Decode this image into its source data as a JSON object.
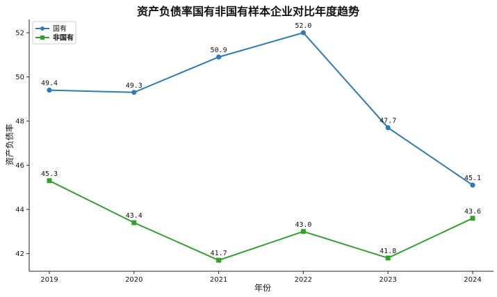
{
  "chart_data": {
    "type": "line",
    "title": "资产负债率国有非国有样本企业对比年度趋势",
    "xlabel": "年份",
    "ylabel": "资产负债率",
    "categories": [
      "2019",
      "2020",
      "2021",
      "2022",
      "2023",
      "2024"
    ],
    "ylim": [
      41.2,
      52.6
    ],
    "yticks": [
      42,
      44,
      46,
      48,
      50,
      52
    ],
    "grid": false,
    "legend_position": "top-left",
    "series": [
      {
        "name": "国有",
        "values": [
          49.4,
          49.3,
          50.9,
          52.0,
          47.7,
          45.1
        ],
        "labels": [
          "49.4",
          "49.3",
          "50.9",
          "52.0",
          "47.7",
          "45.1"
        ],
        "color": "#2c7bb6",
        "marker": "circle"
      },
      {
        "name": "非国有",
        "values": [
          45.3,
          43.4,
          41.7,
          43.0,
          41.8,
          43.6
        ],
        "labels": [
          "45.3",
          "43.4",
          "41.7",
          "43.0",
          "41.8",
          "43.6"
        ],
        "color": "#33a02c",
        "marker": "square"
      }
    ]
  }
}
